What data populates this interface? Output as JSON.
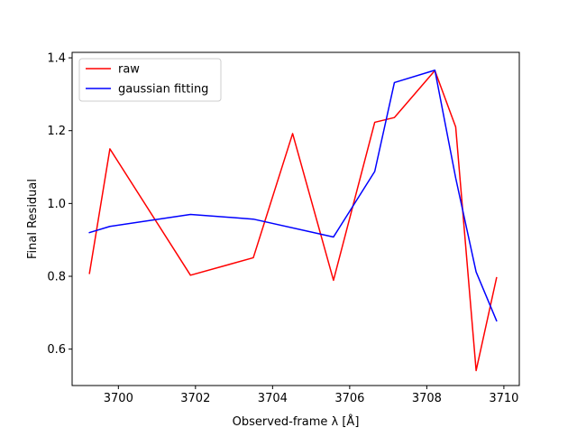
{
  "chart_data": {
    "type": "line",
    "title": "",
    "xlabel": "Observed-frame λ [Å]",
    "ylabel": "Final Residual",
    "xlim": [
      3698.8,
      3710.4
    ],
    "ylim": [
      0.5,
      1.415
    ],
    "xticks": [
      3700,
      3702,
      3704,
      3706,
      3708,
      3710
    ],
    "yticks": [
      0.6,
      0.8,
      1.0,
      1.2,
      1.4
    ],
    "xtick_labels": [
      "3700",
      "3702",
      "3704",
      "3706",
      "3708",
      "3710"
    ],
    "ytick_labels": [
      "0.6",
      "0.8",
      "1.0",
      "1.2",
      "1.4"
    ],
    "legend_position": "upper-left",
    "grid": false,
    "series": [
      {
        "name": "raw",
        "color": "#ff0000",
        "x": [
          3699.25,
          3699.78,
          3701.87,
          3703.5,
          3704.52,
          3705.58,
          3706.65,
          3707.16,
          3708.21,
          3708.75,
          3709.28,
          3709.81
        ],
        "y": [
          0.808,
          1.15,
          0.803,
          0.851,
          1.192,
          0.789,
          1.223,
          1.236,
          1.365,
          1.21,
          0.541,
          0.796
        ]
      },
      {
        "name": "gaussian fitting",
        "color": "#0000ff",
        "x": [
          3699.25,
          3699.78,
          3701.87,
          3703.5,
          3705.58,
          3706.65,
          3707.16,
          3708.21,
          3708.75,
          3709.28,
          3709.81
        ],
        "y": [
          0.92,
          0.937,
          0.97,
          0.957,
          0.908,
          1.088,
          1.332,
          1.366,
          1.07,
          0.812,
          0.678
        ]
      }
    ]
  }
}
